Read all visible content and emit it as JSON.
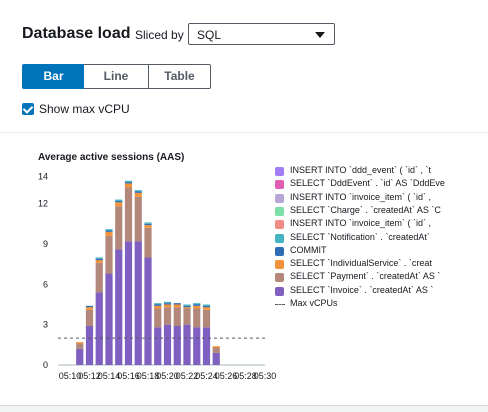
{
  "header": {
    "title": "Database load",
    "slice_label": "Sliced by",
    "slice_value": "SQL"
  },
  "view_tabs": [
    {
      "label": "Bar",
      "active": true
    },
    {
      "label": "Line",
      "active": false
    },
    {
      "label": "Table",
      "active": false
    }
  ],
  "checkbox": {
    "label": "Show max vCPU",
    "checked": true
  },
  "chart_title": "Average active sessions (AAS)",
  "legend": [
    {
      "label": "INSERT INTO `ddd_event` ( `id` , `t",
      "color": "#a07cf5"
    },
    {
      "label": "SELECT `DddEvent` . `id` AS `DddEve",
      "color": "#e05fb4"
    },
    {
      "label": "INSERT INTO `invoice_item` ( `id` ,",
      "color": "#b9a6d8"
    },
    {
      "label": "SELECT `Charge` . `createdAt` AS `C",
      "color": "#7ddfa8"
    },
    {
      "label": "INSERT INTO `invoice_item` ( `id` ,",
      "color": "#f08a84"
    },
    {
      "label": "SELECT `Notification` . `createdAt`",
      "color": "#44b3c2"
    },
    {
      "label": "COMMIT",
      "color": "#2e6cb5"
    },
    {
      "label": "SELECT `IndividualService` . `creat",
      "color": "#f2923a"
    },
    {
      "label": "SELECT `Payment` . `createdAt` AS `",
      "color": "#b3887a"
    },
    {
      "label": "SELECT `Invoice` . `createdAt` AS `",
      "color": "#7f5fbf"
    },
    {
      "label": "Max vCPUs",
      "color": "#545b64",
      "dashed": true
    }
  ],
  "chart_data": {
    "type": "bar",
    "stacked": true,
    "title": "Average active sessions (AAS)",
    "x_ticks": [
      "05:10",
      "05:12",
      "05:14",
      "05:16",
      "05:18",
      "05:20",
      "05:22",
      "05:24",
      "05:26",
      "05:28",
      "05:30"
    ],
    "y_ticks": [
      0,
      3,
      6,
      9,
      12,
      14
    ],
    "ylim": [
      0,
      14.5
    ],
    "max_vcpus": 2,
    "x_minutes": [
      11,
      12,
      13,
      14,
      15,
      16,
      17,
      18,
      19,
      20,
      21,
      22,
      23,
      24,
      25,
      26
    ],
    "series": [
      {
        "name": "SELECT `Invoice` . `createdAt` AS `",
        "color": "#7f5fbf",
        "values": [
          1.2,
          2.9,
          5.4,
          6.8,
          8.6,
          9.2,
          9.2,
          8.0,
          2.8,
          3.0,
          2.9,
          3.0,
          2.8,
          2.8,
          0.9,
          0
        ]
      },
      {
        "name": "SELECT `Payment` . `createdAt` AS `",
        "color": "#b3887a",
        "values": [
          0.4,
          1.2,
          2.2,
          2.8,
          3.2,
          4.0,
          3.3,
          2.2,
          1.4,
          1.3,
          1.4,
          1.2,
          1.4,
          1.3,
          0.4,
          0
        ]
      },
      {
        "name": "SELECT `IndividualService` . `creat",
        "color": "#f2923a",
        "values": [
          0.1,
          0.2,
          0.2,
          0.3,
          0.3,
          0.3,
          0.3,
          0.2,
          0.2,
          0.2,
          0.2,
          0.1,
          0.2,
          0.2,
          0.1,
          0
        ]
      },
      {
        "name": "COMMIT",
        "color": "#2e6cb5",
        "values": [
          0,
          0.1,
          0.1,
          0.1,
          0.1,
          0.1,
          0.1,
          0.1,
          0.1,
          0.1,
          0.1,
          0.1,
          0.1,
          0.1,
          0,
          0
        ]
      },
      {
        "name": "SELECT `Notification` . `createdAt`",
        "color": "#44b3c2",
        "values": [
          0,
          0,
          0.1,
          0.1,
          0.1,
          0.1,
          0.1,
          0.1,
          0.1,
          0.1,
          0,
          0.1,
          0.1,
          0.1,
          0,
          0
        ]
      }
    ]
  }
}
